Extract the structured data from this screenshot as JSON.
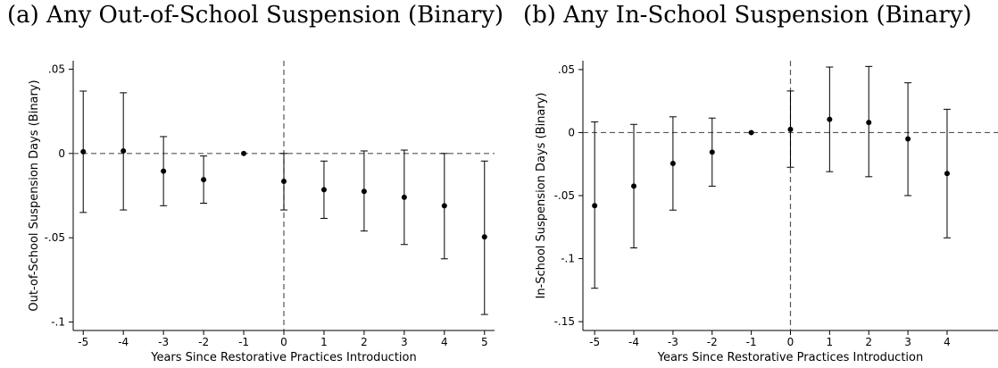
{
  "chart_data": [
    {
      "type": "scatter",
      "title": "(a) Any Out-of-School Suspension (Binary)",
      "xlabel": "Years Since Restorative Practices Introduction",
      "ylabel": "Out-of-School Suspension Days (Binary)",
      "xlim": [
        -5.25,
        5.25
      ],
      "ylim": [
        -0.105,
        0.055
      ],
      "xticks": [
        -5,
        -4,
        -3,
        -2,
        -1,
        0,
        1,
        2,
        3,
        4,
        5
      ],
      "yticks": [
        0.05,
        0,
        -0.05,
        -0.1
      ],
      "ytick_labels": [
        ".05",
        "0",
        "-.05",
        "-.1"
      ],
      "reference_lines": {
        "y": 0,
        "x": 0
      },
      "series": [
        {
          "x": [
            -5,
            -4,
            -3,
            -2,
            -1,
            0,
            1,
            2,
            3,
            4,
            5
          ],
          "y": [
            0.001,
            0.0015,
            -0.0105,
            -0.0155,
            0.0,
            -0.0165,
            -0.0215,
            -0.0225,
            -0.026,
            -0.031,
            -0.0495
          ],
          "ci_low": [
            -0.035,
            -0.0335,
            -0.031,
            -0.0295,
            0.0,
            -0.0335,
            -0.0385,
            -0.046,
            -0.054,
            -0.0625,
            -0.0955
          ],
          "ci_high": [
            0.037,
            0.036,
            0.01,
            -0.0015,
            0.0,
            0.0,
            -0.0045,
            0.0015,
            0.002,
            0.0,
            -0.0045
          ]
        }
      ]
    },
    {
      "type": "scatter",
      "title": "(b) Any In-School Suspension (Binary)",
      "xlabel": "Years Since Restorative Practices Introduction",
      "ylabel": "In-School Suspension Days (Binary)",
      "xlim": [
        -5.3,
        5.3
      ],
      "ylim": [
        -0.157,
        0.057
      ],
      "xticks": [
        -5,
        -4,
        -3,
        -2,
        -1,
        0,
        1,
        2,
        3,
        4
      ],
      "yticks": [
        0.05,
        0,
        -0.05,
        -0.1,
        -0.15
      ],
      "ytick_labels": [
        ".05",
        "0",
        "-.05",
        "-.1",
        "-.15"
      ],
      "reference_lines": {
        "y": 0,
        "x": 0
      },
      "series": [
        {
          "x": [
            -5,
            -4,
            -3,
            -2,
            -1,
            0,
            1,
            2,
            3,
            4
          ],
          "y": [
            -0.058,
            -0.0425,
            -0.0245,
            -0.0155,
            0.0,
            0.0025,
            0.0105,
            0.008,
            -0.005,
            -0.0325
          ],
          "ci_low": [
            -0.1235,
            -0.0915,
            -0.0615,
            -0.0425,
            0.0,
            -0.0275,
            -0.031,
            -0.035,
            -0.05,
            -0.0835
          ],
          "ci_high": [
            0.0085,
            0.0065,
            0.0125,
            0.0115,
            0.0,
            0.033,
            0.052,
            0.0525,
            0.0395,
            0.0185
          ]
        }
      ]
    }
  ]
}
